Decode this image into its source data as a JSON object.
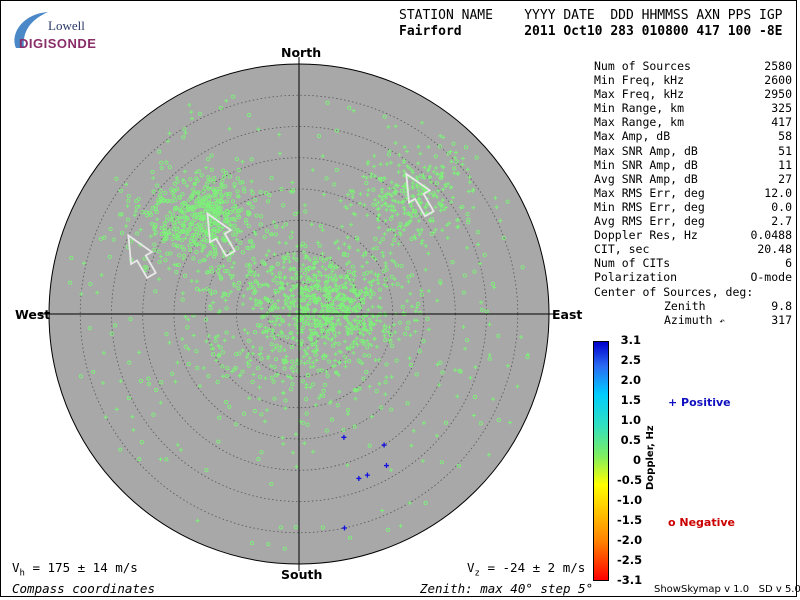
{
  "logo": {
    "line1": "Lowell",
    "line2": "DIGISONDE"
  },
  "header": {
    "labels": "STATION NAME    YYYY DATE  DDD HHMMSS AXN PPS IGP",
    "values": "Fairford        2011 Oct10 283 010800 417 100 -8E"
  },
  "stats": [
    {
      "label": "Num of Sources",
      "value": "2580"
    },
    {
      "label": "Min Freq, kHz",
      "value": "2600"
    },
    {
      "label": "Max Freq, kHz",
      "value": "2950"
    },
    {
      "label": "Min Range, km",
      "value": "325"
    },
    {
      "label": "Max Range, km",
      "value": "417"
    },
    {
      "label": "Max Amp, dB",
      "value": "58"
    },
    {
      "label": "Max SNR Amp, dB",
      "value": "51"
    },
    {
      "label": "Min SNR Amp, dB",
      "value": "11"
    },
    {
      "label": "Avg SNR Amp, dB",
      "value": "27"
    },
    {
      "label": "Max RMS Err, deg",
      "value": "12.0"
    },
    {
      "label": "Min RMS Err, deg",
      "value": "0.0"
    },
    {
      "label": "Avg RMS Err, deg",
      "value": "2.7"
    },
    {
      "label": "Doppler Res, Hz",
      "value": "0.0488"
    },
    {
      "label": "CIT, sec",
      "value": "20.48"
    },
    {
      "label": "Num of CITs",
      "value": "6"
    },
    {
      "label": "Polarization",
      "value": "O-mode"
    }
  ],
  "center_of_sources": {
    "title": "Center of Sources, deg:",
    "zenith_label": "Zenith",
    "zenith_value": "9.8",
    "azimuth_label": "Azimuth",
    "azimuth_value": "317"
  },
  "compass": {
    "north": "North",
    "south": "South",
    "east": "East",
    "west": "West"
  },
  "colorbar": {
    "label": "Doppler, Hz",
    "ticks": [
      "3.1",
      "2.5",
      "2.0",
      "1.5",
      "1.0",
      "0.5",
      "0",
      "-0.5",
      "-1.0",
      "-1.5",
      "-2.0",
      "-2.5",
      "-3.1"
    ]
  },
  "legend": {
    "positive": "+ Positive",
    "negative": "o Negative"
  },
  "footer": {
    "vh_prefix": "V",
    "vh_sub": "h",
    "vh_value": " = 175 ± 14 m/s",
    "vz_prefix": "V",
    "vz_sub": "z",
    "vz_value": " = -24 ± 2 m/s",
    "coords": "Compass coordinates",
    "zenith": "Zenith: max 40°  step 5°",
    "version": "ShowSkymap v 1.0   SD v 5.0"
  },
  "chart_data": {
    "type": "scatter",
    "projection": "polar-skymap",
    "zenith_max_deg": 40,
    "zenith_step_deg": 5,
    "background": "#a8a8a8",
    "colors": {
      "negative_markers": "#7ef07a",
      "positive_markers": "#1010e0",
      "arrows": "#e8e8e8"
    },
    "num_sources": 2580,
    "clusters": [
      {
        "azimuth_deg": 315,
        "zenith_deg": 22,
        "spread_deg": 7,
        "count": 520,
        "marker": "o",
        "doppler": "-0.5"
      },
      {
        "azimuth_deg": 75,
        "zenith_deg": 4,
        "spread_deg": 8,
        "count": 520,
        "marker": "+",
        "doppler": "0.5"
      },
      {
        "azimuth_deg": 45,
        "zenith_deg": 26,
        "spread_deg": 7,
        "count": 300,
        "marker": "+",
        "doppler": "0.5"
      },
      {
        "azimuth_deg": 0,
        "zenith_deg": 0,
        "spread_deg": 14,
        "count": 500,
        "marker": "mixed",
        "doppler": "0"
      }
    ],
    "positive_points": [
      {
        "azimuth_deg": 160,
        "zenith_deg": 21
      },
      {
        "azimuth_deg": 160,
        "zenith_deg": 28
      },
      {
        "azimuth_deg": 157,
        "zenith_deg": 28
      },
      {
        "azimuth_deg": 150,
        "zenith_deg": 28
      },
      {
        "azimuth_deg": 147,
        "zenith_deg": 25
      },
      {
        "azimuth_deg": 168,
        "zenith_deg": 35
      }
    ],
    "velocity_arrows": [
      {
        "azimuth_deg": 315,
        "zenith_deg": 18,
        "direction_deg": 330
      },
      {
        "azimuth_deg": 45,
        "zenith_deg": 27,
        "direction_deg": 330
      },
      {
        "azimuth_deg": 290,
        "zenith_deg": 27,
        "direction_deg": 330
      }
    ]
  }
}
